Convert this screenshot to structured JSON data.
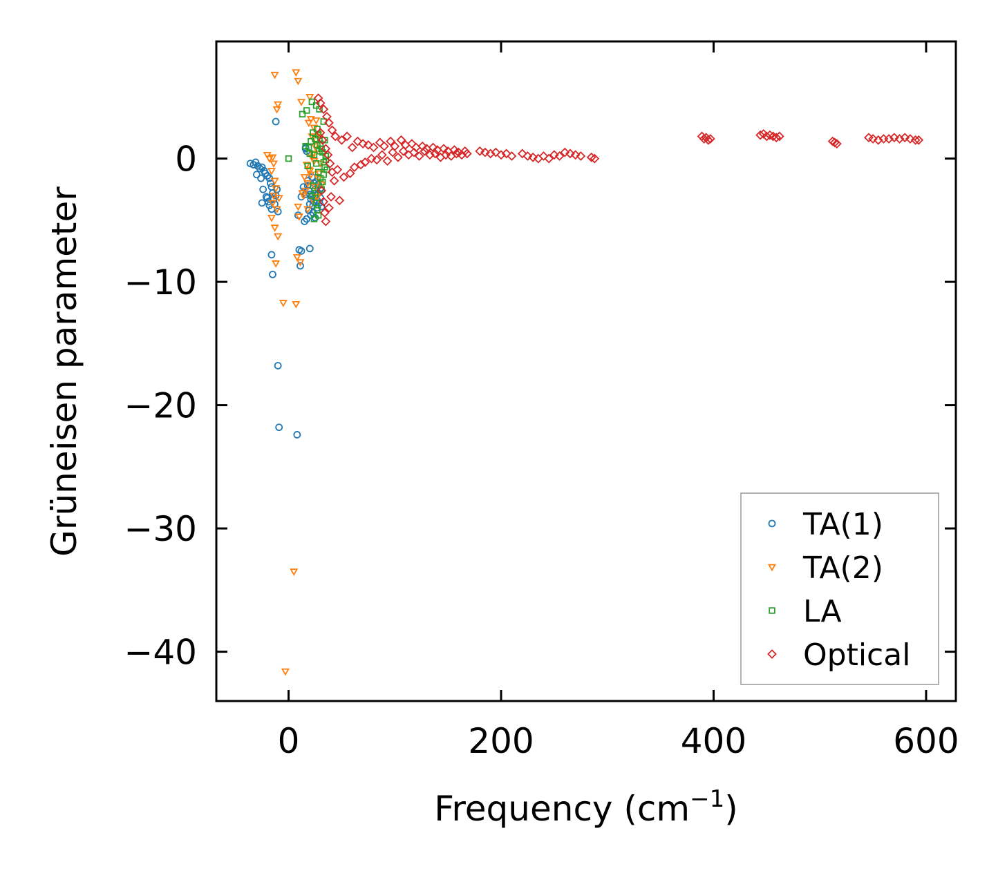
{
  "chart_data": {
    "type": "scatter",
    "title": "",
    "xlabel": "Frequency (cm",
    "xlabel_sup": "−1",
    "xlabel_close": ")",
    "ylabel": "Grüneisen parameter",
    "xlim": [
      -68,
      628
    ],
    "ylim": [
      -44,
      9.5
    ],
    "xticks": [
      0,
      200,
      400,
      600
    ],
    "yticks": [
      0,
      -10,
      -20,
      -30,
      -40
    ],
    "xtick_labels": [
      "0",
      "200",
      "400",
      "600"
    ],
    "ytick_labels": [
      "0",
      "−10",
      "−20",
      "−30",
      "−40"
    ],
    "grid": false,
    "legend_position": "lower-right",
    "series": [
      {
        "name": "TA(1)",
        "marker": "circle",
        "color": "#1f77b4",
        "points": [
          [
            -36,
            -0.4
          ],
          [
            -33,
            -0.5
          ],
          [
            -31,
            -0.3
          ],
          [
            -29,
            -0.6
          ],
          [
            -27,
            -0.8
          ],
          [
            -25,
            -0.7
          ],
          [
            -23,
            -1.0
          ],
          [
            -22,
            -1.2
          ],
          [
            -20,
            -1.4
          ],
          [
            -18,
            -1.6
          ],
          [
            -17,
            -2.0
          ],
          [
            -16,
            -2.3
          ],
          [
            -15,
            -2.8
          ],
          [
            -30,
            -1.3
          ],
          [
            -26,
            -1.6
          ],
          [
            -24,
            -2.5
          ],
          [
            -21,
            -3.1
          ],
          [
            -19,
            -3.5
          ],
          [
            -18,
            -3.8
          ],
          [
            -16,
            -4.1
          ],
          [
            -14,
            -3.3
          ],
          [
            -12,
            -3.0
          ],
          [
            -11,
            -2.5
          ],
          [
            -10,
            -4.3
          ],
          [
            -13,
            -3.7
          ],
          [
            -25,
            -3.6
          ],
          [
            -20,
            -3.2
          ],
          [
            -12,
            3.0
          ],
          [
            -16,
            -7.8
          ],
          [
            -15,
            -9.4
          ],
          [
            -10,
            -16.8
          ],
          [
            -9,
            -21.8
          ],
          [
            8,
            -22.4
          ],
          [
            12,
            -7.5
          ],
          [
            10,
            -7.4
          ],
          [
            20,
            -7.3
          ],
          [
            11,
            -8.7
          ],
          [
            9,
            -4.6
          ],
          [
            12,
            -3.1
          ],
          [
            15,
            -5.1
          ],
          [
            17,
            -4.9
          ],
          [
            14,
            -2.3
          ],
          [
            16,
            0.8
          ],
          [
            17,
            0.6
          ],
          [
            16,
            0.9
          ],
          [
            18,
            -2.2
          ],
          [
            19,
            -2.6
          ],
          [
            20,
            -2.9
          ],
          [
            21,
            -3.3
          ],
          [
            22,
            -3.1
          ],
          [
            23,
            -3.8
          ],
          [
            24,
            -2.0
          ],
          [
            25,
            -2.5
          ],
          [
            26,
            -3.0
          ],
          [
            27,
            -3.4
          ],
          [
            28,
            -2.8
          ],
          [
            29,
            -3.6
          ],
          [
            30,
            -2.4
          ],
          [
            31,
            -3.9
          ],
          [
            19,
            -4.2
          ],
          [
            21,
            -4.6
          ],
          [
            23,
            -4.4
          ],
          [
            25,
            -4.8
          ],
          [
            27,
            -4.0
          ],
          [
            18,
            -1.8
          ],
          [
            22,
            -1.5
          ],
          [
            26,
            -1.9
          ],
          [
            28,
            -2.1
          ],
          [
            24,
            -3.5
          ],
          [
            20,
            -3.7
          ],
          [
            16,
            -2.9
          ],
          [
            30,
            -3.2
          ]
        ]
      },
      {
        "name": "TA(2)",
        "marker": "triangle-down",
        "color": "#ff7f0e",
        "points": [
          [
            -13,
            6.8
          ],
          [
            -10,
            4.4
          ],
          [
            -11,
            4.0
          ],
          [
            -20,
            0.3
          ],
          [
            -18,
            0.0
          ],
          [
            -15,
            0.1
          ],
          [
            -14,
            -0.4
          ],
          [
            -16,
            -1.0
          ],
          [
            -13,
            -1.8
          ],
          [
            -12,
            -2.4
          ],
          [
            -14,
            -3.0
          ],
          [
            -15,
            -3.6
          ],
          [
            -11,
            -4.1
          ],
          [
            -16,
            -4.8
          ],
          [
            -13,
            -5.6
          ],
          [
            -10,
            -6.3
          ],
          [
            -9,
            -3.2
          ],
          [
            -12,
            -8.5
          ],
          [
            -5,
            -11.7
          ],
          [
            7,
            7.0
          ],
          [
            9,
            6.3
          ],
          [
            20,
            5.0
          ],
          [
            12,
            4.6
          ],
          [
            19,
            2.9
          ],
          [
            21,
            3.2
          ],
          [
            5,
            -33.5
          ],
          [
            -3,
            -41.6
          ],
          [
            7,
            -11.8
          ],
          [
            8,
            -8.0
          ],
          [
            11,
            -8.4
          ],
          [
            9,
            -3.9
          ],
          [
            10,
            -4.7
          ],
          [
            14,
            -3.0
          ],
          [
            16,
            -2.6
          ],
          [
            18,
            -2.0
          ],
          [
            15,
            -1.5
          ],
          [
            17,
            -0.5
          ],
          [
            19,
            -0.9
          ],
          [
            21,
            -1.3
          ],
          [
            22,
            0.1
          ],
          [
            23,
            0.4
          ],
          [
            24,
            -0.2
          ],
          [
            25,
            1.0
          ],
          [
            26,
            1.5
          ],
          [
            27,
            0.7
          ],
          [
            28,
            2.0
          ],
          [
            24,
            2.5
          ],
          [
            26,
            3.1
          ],
          [
            22,
            1.8
          ],
          [
            20,
            -1.0
          ],
          [
            29,
            -1.2
          ],
          [
            30,
            -0.4
          ],
          [
            31,
            -2.1
          ],
          [
            25,
            -2.3
          ],
          [
            27,
            -3.1
          ],
          [
            23,
            -3.4
          ],
          [
            18,
            -4.1
          ],
          [
            13,
            -2.8
          ],
          [
            28,
            -1.6
          ]
        ]
      },
      {
        "name": "LA",
        "marker": "square",
        "color": "#2ca02c",
        "points": [
          [
            0,
            0.0
          ],
          [
            13,
            3.6
          ],
          [
            17,
            3.9
          ],
          [
            22,
            4.6
          ],
          [
            26,
            4.3
          ],
          [
            29,
            4.0
          ],
          [
            33,
            3.0
          ],
          [
            16,
            1.0
          ],
          [
            19,
            0.9
          ],
          [
            21,
            1.4
          ],
          [
            23,
            2.1
          ],
          [
            25,
            1.6
          ],
          [
            27,
            2.4
          ],
          [
            28,
            1.9
          ],
          [
            30,
            1.2
          ],
          [
            31,
            0.8
          ],
          [
            32,
            0.5
          ],
          [
            33,
            -0.3
          ],
          [
            34,
            -0.7
          ],
          [
            35,
            0.2
          ],
          [
            36,
            -0.9
          ],
          [
            24,
            0.3
          ],
          [
            26,
            -0.4
          ],
          [
            28,
            -1.1
          ],
          [
            30,
            -1.6
          ],
          [
            32,
            -1.9
          ],
          [
            29,
            0.6
          ],
          [
            27,
            1.1
          ],
          [
            25,
            -2.8
          ],
          [
            26,
            -3.6
          ],
          [
            27,
            -4.2
          ],
          [
            28,
            -4.6
          ],
          [
            24,
            -4.9
          ],
          [
            22,
            -3.0
          ],
          [
            23,
            -2.2
          ],
          [
            31,
            -2.5
          ],
          [
            33,
            -1.3
          ],
          [
            35,
            -0.1
          ],
          [
            20,
            0.4
          ],
          [
            18,
            -0.6
          ],
          [
            34,
            1.5
          ]
        ]
      },
      {
        "name": "Optical",
        "marker": "diamond",
        "color": "#d62728",
        "points": [
          [
            28,
            4.9
          ],
          [
            30,
            4.5
          ],
          [
            33,
            4.0
          ],
          [
            36,
            3.4
          ],
          [
            38,
            2.9
          ],
          [
            41,
            2.3
          ],
          [
            44,
            1.8
          ],
          [
            30,
            2.1
          ],
          [
            32,
            1.5
          ],
          [
            35,
            0.8
          ],
          [
            37,
            0.3
          ],
          [
            39,
            -0.4
          ],
          [
            41,
            -1.1
          ],
          [
            43,
            -1.8
          ],
          [
            31,
            -2.6
          ],
          [
            33,
            -3.5
          ],
          [
            34,
            -4.4
          ],
          [
            35,
            -5.1
          ],
          [
            38,
            -4.0
          ],
          [
            40,
            -3.1
          ],
          [
            48,
            -3.4
          ],
          [
            46,
            -0.9
          ],
          [
            50,
            1.5
          ],
          [
            52,
            -1.5
          ],
          [
            55,
            1.8
          ],
          [
            58,
            -1.2
          ],
          [
            60,
            0.9
          ],
          [
            62,
            -0.7
          ],
          [
            65,
            1.4
          ],
          [
            68,
            -0.5
          ],
          [
            70,
            1.2
          ],
          [
            72,
            -0.3
          ],
          [
            75,
            1.1
          ],
          [
            78,
            0.0
          ],
          [
            80,
            0.9
          ],
          [
            83,
            -0.1
          ],
          [
            86,
            1.3
          ],
          [
            88,
            0.3
          ],
          [
            90,
            1.0
          ],
          [
            93,
            -0.2
          ],
          [
            96,
            1.4
          ],
          [
            98,
            0.5
          ],
          [
            100,
            1.0
          ],
          [
            103,
            0.1
          ],
          [
            106,
            1.5
          ],
          [
            108,
            0.6
          ],
          [
            110,
            1.1
          ],
          [
            113,
            0.3
          ],
          [
            116,
            1.2
          ],
          [
            118,
            0.5
          ],
          [
            120,
            0.9
          ],
          [
            123,
            0.2
          ],
          [
            126,
            1.0
          ],
          [
            128,
            0.6
          ],
          [
            130,
            0.8
          ],
          [
            133,
            0.3
          ],
          [
            136,
            0.9
          ],
          [
            138,
            0.4
          ],
          [
            140,
            0.7
          ],
          [
            143,
            0.1
          ],
          [
            146,
            0.8
          ],
          [
            148,
            0.3
          ],
          [
            150,
            0.6
          ],
          [
            153,
            0.2
          ],
          [
            156,
            0.7
          ],
          [
            158,
            0.4
          ],
          [
            160,
            0.5
          ],
          [
            163,
            0.3
          ],
          [
            166,
            0.6
          ],
          [
            168,
            0.4
          ],
          [
            180,
            0.6
          ],
          [
            185,
            0.5
          ],
          [
            190,
            0.4
          ],
          [
            195,
            0.5
          ],
          [
            200,
            0.3
          ],
          [
            205,
            0.4
          ],
          [
            210,
            0.2
          ],
          [
            220,
            0.4
          ],
          [
            225,
            0.2
          ],
          [
            230,
            0.1
          ],
          [
            235,
            0.0
          ],
          [
            240,
            0.2
          ],
          [
            245,
            0.0
          ],
          [
            250,
            0.3
          ],
          [
            255,
            0.2
          ],
          [
            260,
            0.5
          ],
          [
            265,
            0.4
          ],
          [
            270,
            0.3
          ],
          [
            275,
            0.2
          ],
          [
            285,
            0.1
          ],
          [
            288,
            0.0
          ],
          [
            389,
            1.8
          ],
          [
            391,
            1.6
          ],
          [
            393,
            1.7
          ],
          [
            395,
            1.5
          ],
          [
            397,
            1.6
          ],
          [
            444,
            1.9
          ],
          [
            447,
            2.0
          ],
          [
            450,
            1.8
          ],
          [
            453,
            1.9
          ],
          [
            456,
            1.8
          ],
          [
            459,
            1.7
          ],
          [
            462,
            1.8
          ],
          [
            512,
            1.4
          ],
          [
            514,
            1.3
          ],
          [
            516,
            1.2
          ],
          [
            546,
            1.7
          ],
          [
            550,
            1.6
          ],
          [
            555,
            1.5
          ],
          [
            560,
            1.6
          ],
          [
            565,
            1.6
          ],
          [
            570,
            1.7
          ],
          [
            575,
            1.6
          ],
          [
            580,
            1.7
          ],
          [
            585,
            1.6
          ],
          [
            590,
            1.5
          ],
          [
            593,
            1.5
          ]
        ]
      }
    ]
  }
}
